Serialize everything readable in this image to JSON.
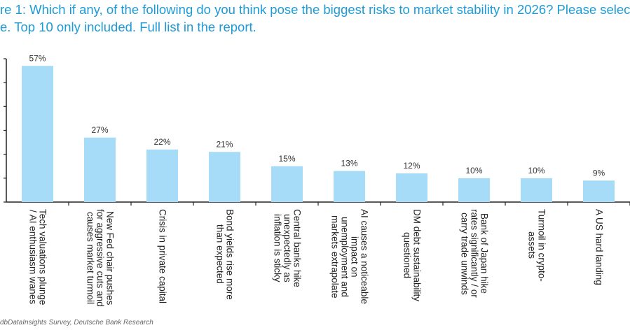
{
  "title_lines": [
    "re 1: Which if any, of the following do you think pose the biggest risks to market stability in 2026? Please select u",
    "e. Top 10 only included. Full list in the report."
  ],
  "source": "dbDataInsights Survey, Deutsche Bank Research",
  "chart_data": {
    "type": "bar",
    "categories": [
      "Tech valuations plunge\n/ AI enthusiasm wanes",
      "New Fed chair pushes\nfor aggressive cuts and\ncauses market turmoil",
      "Crisis in private capital",
      "Bond yields rise more\nthan expected",
      "Central banks hike\nunexpectedly as\ninflation is sticky",
      "AI causes a noticeable\nimpact on\nunemployment and\nmarkets extrapolate",
      "DM debt sustainability\nquestioned",
      "Bank of Japan hike\nrates significantly / or\ncarry trade unwinds",
      "Turmoil in crypto-\nassets",
      "A US hard landing"
    ],
    "values": [
      57,
      27,
      22,
      21,
      15,
      13,
      12,
      10,
      10,
      9
    ],
    "data_labels": [
      "57%",
      "27%",
      "22%",
      "21%",
      "15%",
      "13%",
      "12%",
      "10%",
      "10%",
      "9%"
    ],
    "unit": "%",
    "ylim": [
      0,
      60
    ],
    "yticks": [
      0,
      10,
      20,
      30,
      40,
      50,
      60
    ],
    "grid": false,
    "bar_color": "#a6dcf7",
    "title_color": "#1e9ad6"
  }
}
